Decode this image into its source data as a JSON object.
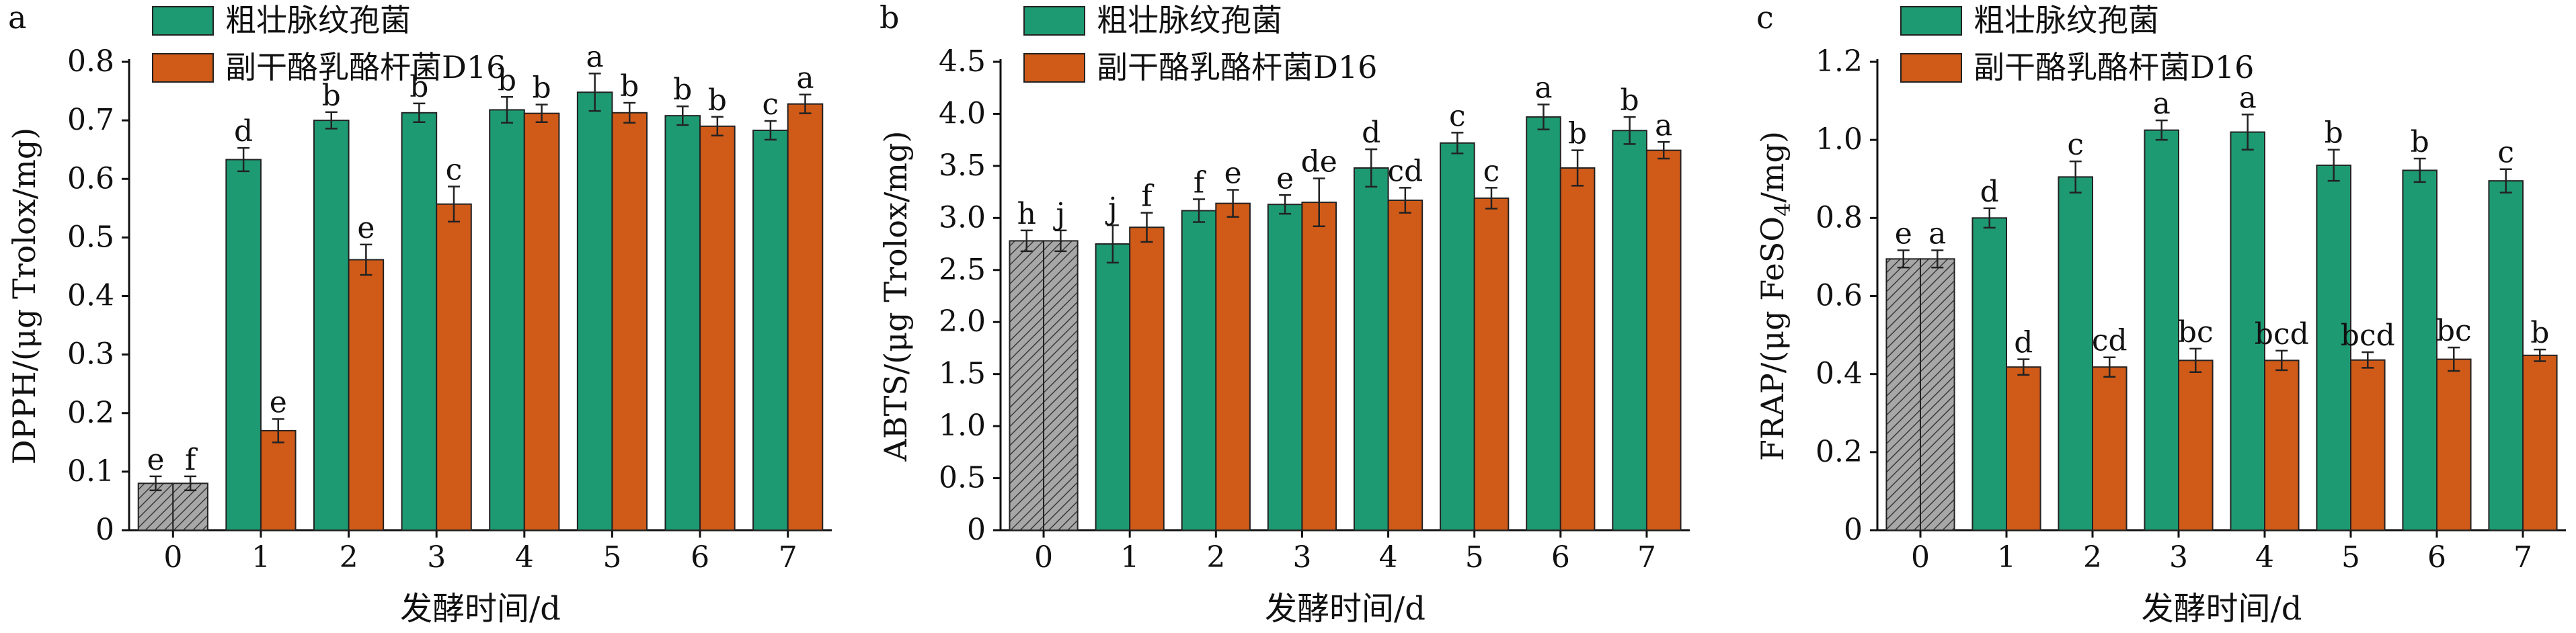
{
  "legend_labels": {
    "series1": "粗壮脉纹孢菌",
    "series2": "副干酪乳酪杆菌D16"
  },
  "colors": {
    "series1": "#1e9a72",
    "series2": "#d05a18",
    "control_fill": "#a7a7a7",
    "axis": "#111111"
  },
  "chart_data": [
    {
      "panel": "a",
      "type": "bar",
      "xlabel": "发酵时间/d",
      "ylabel": "DPPH/(μg Trolox/mg)",
      "ylim": [
        0,
        0.8
      ],
      "yticks": [
        "0",
        "0.1",
        "0.2",
        "0.3",
        "0.4",
        "0.5",
        "0.6",
        "0.7",
        "0.8"
      ],
      "tick_decimals": 1,
      "legend_position": "top-left",
      "categories": [
        "0",
        "1",
        "2",
        "3",
        "4",
        "5",
        "6",
        "7"
      ],
      "control": {
        "values": [
          0.08,
          0.08
        ],
        "errors": [
          0.012,
          0.012
        ],
        "letters": [
          "e",
          "f"
        ]
      },
      "series": [
        {
          "name": "粗壮脉纹孢菌",
          "values": [
            null,
            0.633,
            0.7,
            0.713,
            0.718,
            0.748,
            0.708,
            0.683
          ],
          "errors": [
            null,
            0.02,
            0.014,
            0.016,
            0.022,
            0.032,
            0.016,
            0.016
          ],
          "letters": [
            null,
            "d",
            "b",
            "b",
            "b",
            "a",
            "b",
            "c"
          ]
        },
        {
          "name": "副干酪乳酪杆菌D16",
          "values": [
            null,
            0.17,
            0.462,
            0.557,
            0.712,
            0.713,
            0.69,
            0.728
          ],
          "errors": [
            null,
            0.02,
            0.026,
            0.03,
            0.015,
            0.017,
            0.016,
            0.016
          ],
          "letters": [
            null,
            "e",
            "e",
            "c",
            "b",
            "b",
            "b",
            "a"
          ]
        }
      ]
    },
    {
      "panel": "b",
      "type": "bar",
      "xlabel": "发酵时间/d",
      "ylabel": "ABTS/(μg Trolox/mg)",
      "ylim": [
        0,
        4.5
      ],
      "yticks": [
        "0",
        "0.5",
        "1.0",
        "1.5",
        "2.0",
        "2.5",
        "3.0",
        "3.5",
        "4.0",
        "4.5"
      ],
      "tick_decimals": 1,
      "legend_position": "top-left",
      "categories": [
        "0",
        "1",
        "2",
        "3",
        "4",
        "5",
        "6",
        "7"
      ],
      "control": {
        "values": [
          2.78,
          2.78
        ],
        "errors": [
          0.1,
          0.1
        ],
        "letters": [
          "h",
          "j"
        ]
      },
      "series": [
        {
          "name": "粗壮脉纹孢菌",
          "values": [
            null,
            2.75,
            3.07,
            3.13,
            3.48,
            3.72,
            3.97,
            3.84
          ],
          "errors": [
            null,
            0.18,
            0.11,
            0.09,
            0.18,
            0.1,
            0.12,
            0.13
          ],
          "letters": [
            null,
            "j",
            "f",
            "e",
            "d",
            "c",
            "a",
            "b"
          ]
        },
        {
          "name": "副干酪乳酪杆菌D16",
          "values": [
            null,
            2.91,
            3.14,
            3.15,
            3.17,
            3.19,
            3.48,
            3.65
          ],
          "errors": [
            null,
            0.14,
            0.13,
            0.23,
            0.12,
            0.1,
            0.17,
            0.08
          ],
          "letters": [
            null,
            "f",
            "e",
            "de",
            "cd",
            "c",
            "b",
            "a"
          ]
        }
      ]
    },
    {
      "panel": "c",
      "type": "bar",
      "xlabel": "发酵时间/d",
      "ylabel": "FRAP/(μg FeSO4/mg)",
      "ylabel_main": "FRAP/(μg FeSO",
      "ylabel_sub": "4",
      "ylabel_end": "/mg)",
      "ylim": [
        0,
        1.2
      ],
      "yticks": [
        "0",
        "0.2",
        "0.4",
        "0.6",
        "0.8",
        "1.0",
        "1.2"
      ],
      "tick_decimals": 1,
      "legend_position": "top-left",
      "categories": [
        "0",
        "1",
        "2",
        "3",
        "4",
        "5",
        "6",
        "7"
      ],
      "control": {
        "values": [
          0.695,
          0.695
        ],
        "errors": [
          0.022,
          0.022
        ],
        "letters": [
          "e",
          "a"
        ]
      },
      "series": [
        {
          "name": "粗壮脉纹孢菌",
          "values": [
            null,
            0.8,
            0.905,
            1.025,
            1.02,
            0.935,
            0.922,
            0.895
          ],
          "errors": [
            null,
            0.025,
            0.04,
            0.025,
            0.045,
            0.04,
            0.03,
            0.03
          ],
          "letters": [
            null,
            "d",
            "c",
            "a",
            "a",
            "b",
            "b",
            "c"
          ]
        },
        {
          "name": "副干酪乳酪杆菌D16",
          "values": [
            null,
            0.418,
            0.418,
            0.435,
            0.435,
            0.436,
            0.438,
            0.448
          ],
          "errors": [
            null,
            0.02,
            0.025,
            0.03,
            0.025,
            0.02,
            0.03,
            0.015
          ],
          "letters": [
            null,
            "d",
            "cd",
            "bc",
            "bcd",
            "bcd",
            "bc",
            "b"
          ]
        }
      ]
    }
  ]
}
